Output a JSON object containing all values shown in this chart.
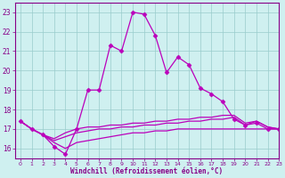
{
  "xlabel": "Windchill (Refroidissement éolien,°C)",
  "xlim": [
    -0.5,
    23
  ],
  "ylim": [
    15.5,
    23.5
  ],
  "yticks": [
    16,
    17,
    18,
    19,
    20,
    21,
    22,
    23
  ],
  "xticks": [
    0,
    1,
    2,
    3,
    4,
    5,
    6,
    7,
    8,
    9,
    10,
    11,
    12,
    13,
    14,
    15,
    16,
    17,
    18,
    19,
    20,
    21,
    22,
    23
  ],
  "bg_color": "#cff0f0",
  "grid_color": "#99cccc",
  "line_color": "#bb00bb",
  "lines": [
    {
      "x": [
        0,
        1,
        2,
        3,
        4,
        5,
        6,
        7,
        8,
        9,
        10,
        11,
        12,
        13,
        14,
        15,
        16,
        17,
        18,
        19,
        20,
        21,
        22,
        23
      ],
      "y": [
        17.4,
        17.0,
        16.7,
        16.1,
        15.7,
        17.0,
        19.0,
        19.0,
        21.3,
        21.0,
        23.0,
        22.9,
        21.8,
        19.9,
        20.7,
        20.3,
        19.1,
        18.8,
        18.4,
        17.5,
        17.2,
        17.3,
        17.0,
        17.0
      ],
      "marker": "D",
      "markersize": 2.5,
      "linewidth": 0.9
    },
    {
      "x": [
        0,
        1,
        2,
        3,
        4,
        5,
        6,
        7,
        8,
        9,
        10,
        11,
        12,
        13,
        14,
        15,
        16,
        17,
        18,
        19,
        20,
        21,
        22,
        23
      ],
      "y": [
        17.4,
        17.0,
        16.7,
        16.5,
        16.8,
        17.0,
        17.1,
        17.1,
        17.2,
        17.2,
        17.3,
        17.3,
        17.4,
        17.4,
        17.5,
        17.5,
        17.6,
        17.6,
        17.7,
        17.7,
        17.3,
        17.4,
        17.1,
        17.0
      ],
      "marker": null,
      "markersize": 0,
      "linewidth": 0.9
    },
    {
      "x": [
        0,
        1,
        2,
        3,
        4,
        5,
        6,
        7,
        8,
        9,
        10,
        11,
        12,
        13,
        14,
        15,
        16,
        17,
        18,
        19,
        20,
        21,
        22,
        23
      ],
      "y": [
        17.4,
        17.0,
        16.7,
        16.3,
        16.0,
        16.3,
        16.4,
        16.5,
        16.6,
        16.7,
        16.8,
        16.8,
        16.9,
        16.9,
        17.0,
        17.0,
        17.0,
        17.0,
        17.0,
        17.0,
        17.0,
        17.0,
        17.0,
        17.0
      ],
      "marker": null,
      "markersize": 0,
      "linewidth": 0.9
    },
    {
      "x": [
        0,
        1,
        2,
        3,
        4,
        5,
        6,
        7,
        8,
        9,
        10,
        11,
        12,
        13,
        14,
        15,
        16,
        17,
        18,
        19,
        20,
        21,
        22,
        23
      ],
      "y": [
        17.4,
        17.0,
        16.7,
        16.4,
        16.6,
        16.8,
        16.9,
        17.0,
        17.0,
        17.1,
        17.1,
        17.2,
        17.2,
        17.3,
        17.3,
        17.4,
        17.4,
        17.5,
        17.5,
        17.6,
        17.2,
        17.4,
        17.1,
        17.0
      ],
      "marker": null,
      "markersize": 0,
      "linewidth": 0.9
    }
  ]
}
